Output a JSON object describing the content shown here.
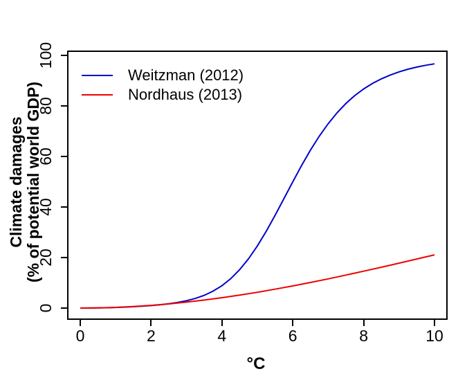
{
  "figure": {
    "background": "#ffffff",
    "axis_color": "#000000",
    "x_axis": {
      "title": "°C"
    },
    "y_axis": {
      "title_line1": "Climate damages",
      "title_line2": "(% of potential world GDP)"
    },
    "legend": {
      "items": [
        {
          "label": "Weitzman (2012)",
          "color": "#0000cc"
        },
        {
          "label": "Nordhaus (2013)",
          "color": "#ee0000"
        }
      ]
    }
  },
  "chart_data": {
    "type": "line",
    "title": "",
    "xlabel": "°C",
    "ylabel": "Climate damages (% of potential world GDP)",
    "xlim": [
      0,
      10
    ],
    "ylim": [
      0,
      100
    ],
    "x_ticks": [
      0,
      2,
      4,
      6,
      8,
      10
    ],
    "y_ticks": [
      0,
      20,
      40,
      60,
      80,
      100
    ],
    "grid": false,
    "legend_position": "top-left-inside",
    "series": [
      {
        "name": "Weitzman (2012)",
        "color": "#0000cc",
        "x": [
          0,
          0.25,
          0.5,
          0.75,
          1,
          1.25,
          1.5,
          1.75,
          2,
          2.25,
          2.5,
          2.75,
          3,
          3.25,
          3.5,
          3.75,
          4,
          4.25,
          4.5,
          4.75,
          5,
          5.25,
          5.5,
          5.75,
          6,
          6.25,
          6.5,
          6.75,
          7,
          7.25,
          7.5,
          7.75,
          8,
          8.25,
          8.5,
          8.75,
          9,
          9.25,
          9.5,
          9.75,
          10
        ],
        "y": [
          0,
          0.02,
          0.06,
          0.13,
          0.24,
          0.37,
          0.54,
          0.75,
          1.0,
          1.31,
          1.71,
          2.23,
          2.91,
          3.82,
          5.05,
          6.7,
          8.86,
          11.67,
          15.2,
          19.51,
          24.6,
          30.38,
          36.7,
          43.32,
          49.98,
          56.46,
          62.54,
          68.08,
          73.0,
          77.3,
          80.98,
          84.1,
          86.72,
          88.9,
          90.72,
          92.23,
          93.47,
          94.51,
          95.36,
          96.08,
          96.67
        ]
      },
      {
        "name": "Nordhaus (2013)",
        "color": "#ee0000",
        "x": [
          0,
          0.5,
          1,
          1.5,
          2,
          2.5,
          3,
          3.5,
          4,
          4.5,
          5,
          5.5,
          6,
          6.5,
          7,
          7.5,
          8,
          8.5,
          9,
          9.5,
          10
        ],
        "y": [
          0,
          0.07,
          0.27,
          0.6,
          1.06,
          1.64,
          2.35,
          3.17,
          4.1,
          5.13,
          6.26,
          7.47,
          8.77,
          10.14,
          11.57,
          13.06,
          14.59,
          16.17,
          17.78,
          19.42,
          21.07
        ]
      }
    ]
  }
}
